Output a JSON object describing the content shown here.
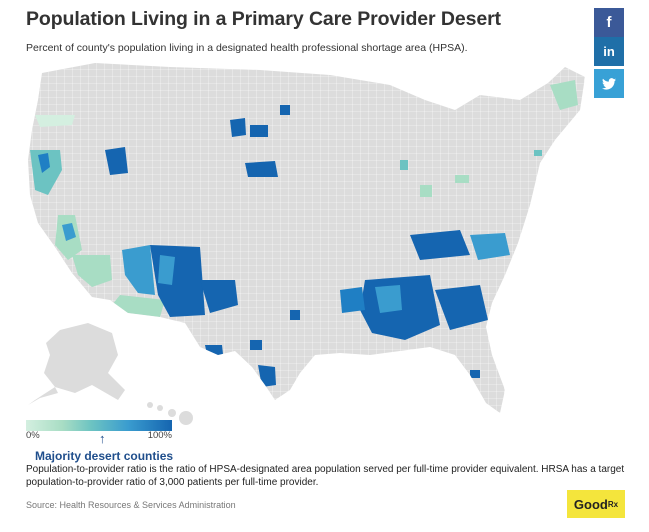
{
  "header": {
    "title": "Population Living in a Primary Care Provider Desert",
    "subtitle": "Percent of county's population living in a designated health professional shortage area (HPSA)."
  },
  "share": {
    "facebook": "f",
    "linkedin": "in",
    "twitter_icon": "twitter-bird-icon",
    "colors": {
      "facebook": "#3b5998",
      "linkedin": "#1f6fa8",
      "twitter": "#38a1d6"
    }
  },
  "legend": {
    "min_label": "0%",
    "max_label": "100%",
    "marker_label": "Majority desert counties",
    "marker_value": 0.5,
    "colors": [
      "#d4efe0",
      "#a8ddc4",
      "#6cc3c2",
      "#3a9ccf",
      "#1565b0"
    ]
  },
  "note": "Population-to-provider ratio is the ratio of HPSA-designated area population served per full-time provider equivalent. HRSA has a target population-to-provider ratio of 3,000 patients per full-time provider.",
  "source": "Source: Health Resources & Services Administration",
  "logo": {
    "text": "Good",
    "sub": "Rx"
  },
  "map": {
    "base_color": "#dcdcdc",
    "border_color": "#ffffff",
    "regions": [
      {
        "name": "Northern California coast",
        "level": 0.55
      },
      {
        "name": "Central Valley California",
        "level": 0.2
      },
      {
        "name": "Southern California",
        "level": 0.15
      },
      {
        "name": "Nevada",
        "level": 0.6
      },
      {
        "name": "Southern Arizona",
        "level": 0.3
      },
      {
        "name": "Northeastern Arizona",
        "level": 0.95
      },
      {
        "name": "Northwestern New Mexico",
        "level": 0.95
      },
      {
        "name": "Southeast Oregon",
        "level": 0.9
      },
      {
        "name": "Montana",
        "level": 0.9
      },
      {
        "name": "South Dakota",
        "level": 0.95
      },
      {
        "name": "Texas border",
        "level": 0.9
      },
      {
        "name": "Mississippi Delta",
        "level": 1.0
      },
      {
        "name": "Alabama",
        "level": 0.95
      },
      {
        "name": "Georgia",
        "level": 0.9
      },
      {
        "name": "Appalachia",
        "level": 0.9
      },
      {
        "name": "Maine",
        "level": 0.15
      }
    ]
  }
}
